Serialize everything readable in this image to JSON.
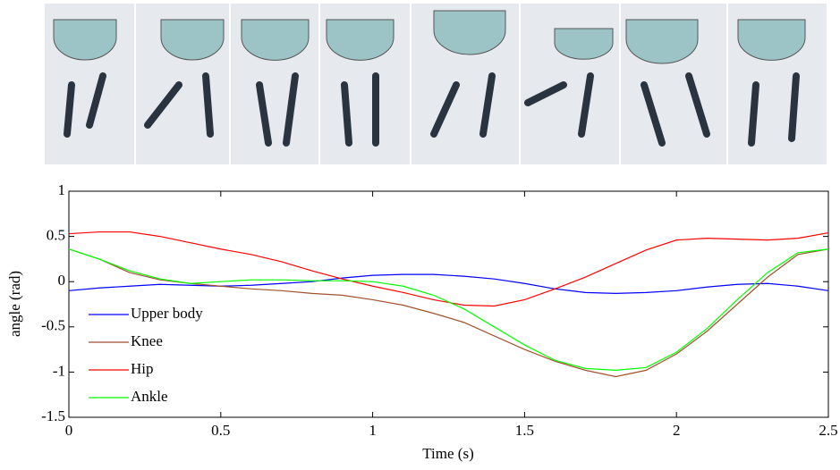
{
  "chart_data": {
    "type": "line",
    "xlabel": "Time (s)",
    "ylabel": "angle (rad)",
    "x": [
      0,
      0.1,
      0.2,
      0.3,
      0.4,
      0.5,
      0.6,
      0.7,
      0.8,
      0.9,
      1.0,
      1.1,
      1.2,
      1.3,
      1.4,
      1.5,
      1.6,
      1.7,
      1.8,
      1.9,
      2.0,
      2.1,
      2.2,
      2.3,
      2.4,
      2.5
    ],
    "series": [
      {
        "name": "Upper body",
        "color": "#0000ff",
        "values": [
          -0.1,
          -0.07,
          -0.05,
          -0.03,
          -0.04,
          -0.05,
          -0.04,
          -0.02,
          0,
          0.04,
          0.07,
          0.08,
          0.08,
          0.06,
          0.03,
          -0.02,
          -0.08,
          -0.12,
          -0.13,
          -0.12,
          -0.1,
          -0.06,
          -0.03,
          -0.02,
          -0.05,
          -0.1
        ]
      },
      {
        "name": "Knee",
        "color": "#a0522d",
        "values": [
          0.36,
          0.25,
          0.1,
          0.02,
          -0.02,
          -0.05,
          -0.08,
          -0.1,
          -0.13,
          -0.15,
          -0.2,
          -0.26,
          -0.35,
          -0.45,
          -0.6,
          -0.75,
          -0.88,
          -0.98,
          -1.05,
          -0.98,
          -0.8,
          -0.55,
          -0.25,
          0.05,
          0.3,
          0.36
        ]
      },
      {
        "name": "Hip",
        "color": "#ff0000",
        "values": [
          0.53,
          0.55,
          0.55,
          0.5,
          0.43,
          0.36,
          0.3,
          0.22,
          0.12,
          0.03,
          -0.05,
          -0.12,
          -0.2,
          -0.26,
          -0.27,
          -0.2,
          -0.08,
          0.05,
          0.2,
          0.35,
          0.46,
          0.48,
          0.47,
          0.46,
          0.48,
          0.54
        ]
      },
      {
        "name": "Ankle",
        "color": "#00ff00",
        "values": [
          0.36,
          0.25,
          0.12,
          0.03,
          -0.02,
          0,
          0.02,
          0.02,
          0.01,
          0.01,
          0,
          -0.05,
          -0.15,
          -0.3,
          -0.5,
          -0.7,
          -0.87,
          -0.96,
          -0.98,
          -0.95,
          -0.78,
          -0.52,
          -0.2,
          0.1,
          0.32,
          0.36
        ]
      }
    ],
    "xlim": [
      0,
      2.5
    ],
    "xticks": [
      0,
      0.5,
      1,
      1.5,
      2,
      2.5
    ],
    "ylim": [
      -1.5,
      1
    ],
    "yticks": [
      -1.5,
      -1,
      -0.5,
      0,
      0.5,
      1
    ],
    "legend": "lower left"
  }
}
